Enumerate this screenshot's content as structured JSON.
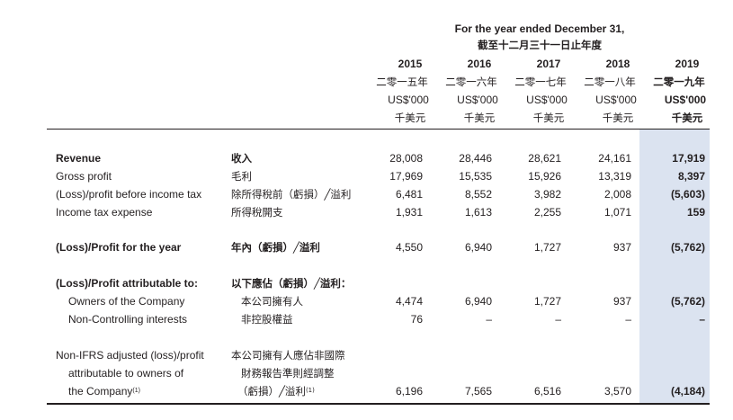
{
  "header": {
    "period_en": "For the year ended December 31,",
    "period_zh": "截至十二月三十一日止年度",
    "years": [
      {
        "year": "2015",
        "year_zh": "二零一五年",
        "unit": "US$'000",
        "unit_zh": "千美元"
      },
      {
        "year": "2016",
        "year_zh": "二零一六年",
        "unit": "US$'000",
        "unit_zh": "千美元"
      },
      {
        "year": "2017",
        "year_zh": "二零一七年",
        "unit": "US$'000",
        "unit_zh": "千美元"
      },
      {
        "year": "2018",
        "year_zh": "二零一八年",
        "unit": "US$'000",
        "unit_zh": "千美元"
      },
      {
        "year": "2019",
        "year_zh": "二零一九年",
        "unit": "US$'000",
        "unit_zh": "千美元"
      }
    ]
  },
  "rows": {
    "revenue": {
      "en": "Revenue",
      "zh": "收入",
      "values": [
        "28,008",
        "28,446",
        "28,621",
        "24,161",
        "17,919"
      ]
    },
    "gross_profit": {
      "en": "Gross profit",
      "zh": "毛利",
      "values": [
        "17,969",
        "15,535",
        "15,926",
        "13,319",
        "8,397"
      ]
    },
    "pbt": {
      "en": "(Loss)/profit before income tax",
      "zh": "除所得稅前（虧損）╱溢利",
      "values": [
        "6,481",
        "8,552",
        "3,982",
        "2,008",
        "(5,603)"
      ]
    },
    "tax": {
      "en": "Income tax expense",
      "zh": "所得稅開支",
      "values": [
        "1,931",
        "1,613",
        "2,255",
        "1,071",
        "159"
      ]
    },
    "profit_year": {
      "en": "(Loss)/Profit for the year",
      "zh": "年內（虧損）╱溢利",
      "values": [
        "4,550",
        "6,940",
        "1,727",
        "937",
        "(5,762)"
      ]
    },
    "attributable": {
      "en": "(Loss)/Profit attributable to:",
      "zh": "以下應佔（虧損）╱溢利："
    },
    "owners": {
      "en": "Owners of the Company",
      "zh": "本公司擁有人",
      "values": [
        "4,474",
        "6,940",
        "1,727",
        "937",
        "(5,762)"
      ]
    },
    "nci": {
      "en": "Non-Controlling interests",
      "zh": "非控股權益",
      "values": [
        "76",
        "–",
        "–",
        "–",
        "–"
      ]
    },
    "non_ifrs": {
      "en_line1": "Non-IFRS adjusted (loss)/profit",
      "en_line2": "attributable to owners of",
      "en_line3": "the Company",
      "zh_line1": "本公司擁有人應佔非國際",
      "zh_line2": "財務報告準則經調整",
      "zh_line3": "（虧損）╱溢利",
      "note": "(1)",
      "values": [
        "6,196",
        "7,565",
        "6,516",
        "3,570",
        "(4,184)"
      ]
    }
  }
}
